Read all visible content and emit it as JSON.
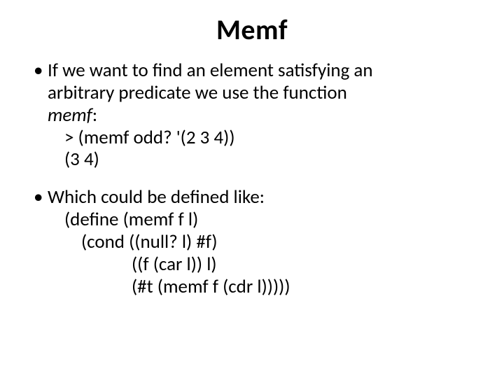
{
  "title": "Memf",
  "bullet1": {
    "line1a": "If we want to find an element satisfying an",
    "line1b": "arbitrary predicate we use the function",
    "fn_name": "memf",
    "colon": ":",
    "code1": ">  (memf  odd?  '(2  3  4))",
    "code2": "(3  4)"
  },
  "bullet2": {
    "line1": "Which could be defined like:",
    "code1": "(define (memf f l)",
    "code2": "(cond ((null? l) #f)",
    "code3": "((f (car l)) l)",
    "code4": "(#t (memf f (cdr l)))))"
  },
  "style": {
    "background_color": "#ffffff",
    "text_color": "#000000",
    "title_fontsize": 40,
    "body_fontsize": 27,
    "font_family": "Calibri"
  }
}
